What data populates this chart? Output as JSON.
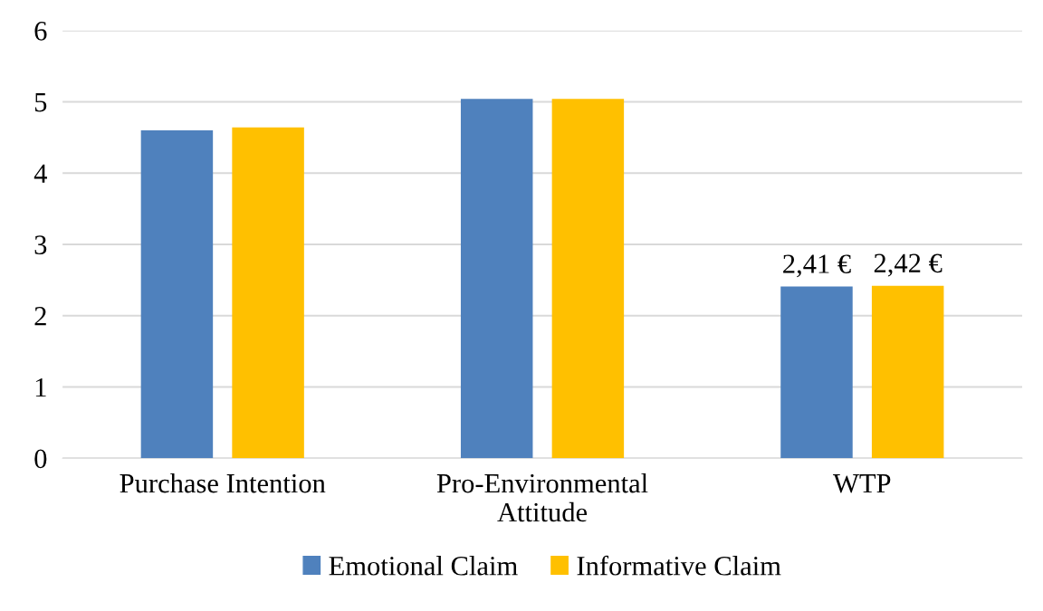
{
  "chart_data": {
    "type": "bar",
    "categories": [
      "Purchase Intention",
      "Pro-Environmental\nAttitude",
      "WTP"
    ],
    "series": [
      {
        "name": "Emotional Claim",
        "color": "#4f81bd",
        "values": [
          4.6,
          5.04,
          2.41
        ],
        "value_labels": [
          null,
          null,
          "2,41 €"
        ]
      },
      {
        "name": "Informative Claim",
        "color": "#ffc000",
        "values": [
          4.64,
          5.04,
          2.42
        ],
        "value_labels": [
          null,
          null,
          "2,42 €"
        ]
      }
    ],
    "ylim": [
      0,
      6
    ],
    "yticks": [
      0,
      1,
      2,
      3,
      4,
      5,
      6
    ],
    "grid": "y",
    "legend": "bottom"
  }
}
